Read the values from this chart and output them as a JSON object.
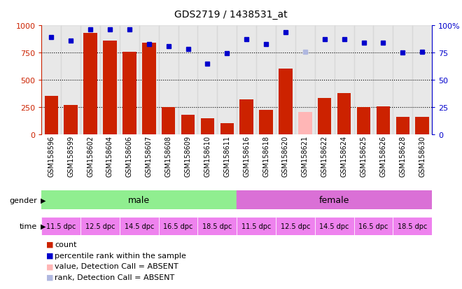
{
  "title": "GDS2719 / 1438531_at",
  "samples": [
    "GSM158596",
    "GSM158599",
    "GSM158602",
    "GSM158604",
    "GSM158606",
    "GSM158607",
    "GSM158608",
    "GSM158609",
    "GSM158610",
    "GSM158611",
    "GSM158616",
    "GSM158618",
    "GSM158620",
    "GSM158621",
    "GSM158622",
    "GSM158624",
    "GSM158625",
    "GSM158626",
    "GSM158628",
    "GSM158630"
  ],
  "bar_values": [
    350,
    270,
    930,
    860,
    760,
    840,
    250,
    180,
    145,
    100,
    320,
    225,
    600,
    200,
    330,
    380,
    250,
    255,
    155,
    160
  ],
  "bar_absent": [
    false,
    false,
    false,
    false,
    false,
    false,
    false,
    false,
    false,
    false,
    false,
    false,
    false,
    true,
    false,
    false,
    false,
    false,
    false,
    false
  ],
  "rank_values": [
    89,
    86,
    96,
    96,
    96,
    83,
    81,
    78,
    65,
    74.5,
    87,
    82.5,
    93.5,
    76,
    87,
    87,
    84,
    84,
    75,
    75.5
  ],
  "rank_absent": [
    false,
    false,
    false,
    false,
    false,
    false,
    false,
    false,
    false,
    false,
    false,
    false,
    false,
    true,
    false,
    false,
    false,
    false,
    false,
    false
  ],
  "bar_color": "#cc2200",
  "bar_absent_color": "#ffb6b6",
  "rank_color": "#0000cc",
  "rank_absent_color": "#b0b8e0",
  "male_color": "#90ee90",
  "female_color": "#da70d6",
  "time_color": "#ee82ee",
  "bg_color": "#d3d3d3",
  "left_axis_color": "#cc2200",
  "right_axis_color": "#0000cc",
  "ylim_left": [
    0,
    1000
  ],
  "ylim_right": [
    0,
    100
  ],
  "yticks_left": [
    0,
    250,
    500,
    750,
    1000
  ],
  "yticks_right": [
    0,
    25,
    50,
    75,
    100
  ],
  "grid_values": [
    250,
    500,
    750
  ],
  "time_labels_all": [
    "11.5 dpc",
    "12.5 dpc",
    "14.5 dpc",
    "16.5 dpc",
    "18.5 dpc",
    "11.5 dpc",
    "12.5 dpc",
    "14.5 dpc",
    "16.5 dpc",
    "18.5 dpc"
  ],
  "time_group_starts": [
    0,
    2,
    4,
    6,
    8,
    10,
    12,
    14,
    16,
    18
  ],
  "time_group_widths": [
    2,
    2,
    2,
    2,
    2,
    2,
    2,
    2,
    2,
    2
  ],
  "legend_items": [
    {
      "label": "count",
      "color": "#cc2200"
    },
    {
      "label": "percentile rank within the sample",
      "color": "#0000cc"
    },
    {
      "label": "value, Detection Call = ABSENT",
      "color": "#ffb6b6"
    },
    {
      "label": "rank, Detection Call = ABSENT",
      "color": "#b0b8e0"
    }
  ]
}
